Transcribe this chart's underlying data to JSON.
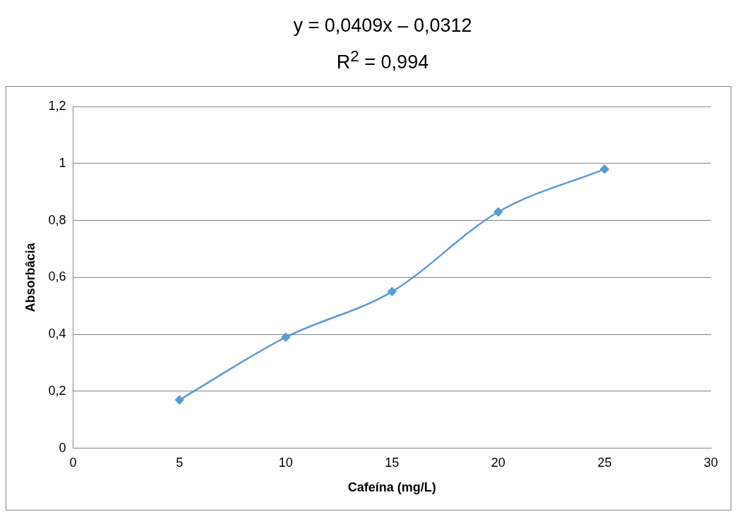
{
  "chart_data": {
    "type": "line",
    "title": "y = 0,0409x – 0,0312",
    "subtitle": "R$^{2}$ = 0,994",
    "xlabel": "Cafeína (mg/L)",
    "ylabel": "Absorbâcia",
    "x": [
      5,
      10,
      15,
      20,
      25
    ],
    "series": [
      {
        "color": "#5b9bd5",
        "values": [
          0.17,
          0.39,
          0.55,
          0.83,
          0.98
        ]
      }
    ],
    "xlim": [
      0,
      30
    ],
    "xticks": [
      0,
      5,
      10,
      15,
      20,
      25,
      30
    ],
    "ylim": [
      0,
      1.2
    ],
    "yticks": [
      0,
      {
        "value": 0.2,
        "label": "0,2"
      },
      {
        "value": 0.4,
        "label": "0,4"
      },
      {
        "value": 0.6,
        "label": "0,6"
      },
      {
        "value": 0.8,
        "label": "0,8"
      },
      1,
      {
        "value": 1.2,
        "label": "1,2"
      }
    ],
    "grid": "y",
    "marker": "diamond",
    "line_style": "solid"
  }
}
